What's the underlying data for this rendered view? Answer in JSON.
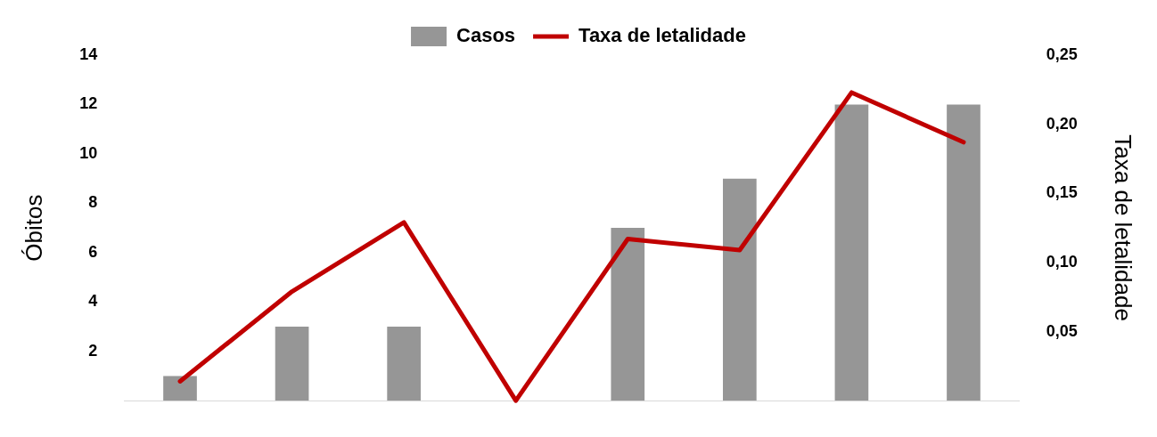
{
  "chart_data": {
    "type": "bar",
    "ylabel": "Óbitos",
    "y2label": "Taxa de letalidade",
    "categories": [
      null,
      null,
      null,
      null,
      null,
      null,
      null,
      null
    ],
    "series": [
      {
        "name": "Casos",
        "color": "#969696",
        "values": [
          1,
          3,
          3,
          0,
          7,
          9,
          12,
          12
        ]
      },
      {
        "name": "Taxa de letalidade",
        "type": "line",
        "axis": "y2",
        "color": "#c00000",
        "values": [
          0.014,
          0.079,
          0.129,
          0,
          0.117,
          0.109,
          0.223,
          0.187
        ]
      }
    ],
    "ylim": [
      0,
      14
    ],
    "yticks": [
      2,
      4,
      6,
      8,
      10,
      12,
      14
    ],
    "y2lim": [
      0,
      0.25
    ],
    "y2ticks": [
      {
        "value": 0.05,
        "label": "0,05"
      },
      {
        "value": 0.1,
        "label": "0,10"
      },
      {
        "value": 0.15,
        "label": "0,15"
      },
      {
        "value": 0.2,
        "label": "0,20"
      },
      {
        "value": 0.25,
        "label": "0,25"
      }
    ],
    "tick_labels": "y",
    "grid": false,
    "legend": "top",
    "marker": "none"
  }
}
